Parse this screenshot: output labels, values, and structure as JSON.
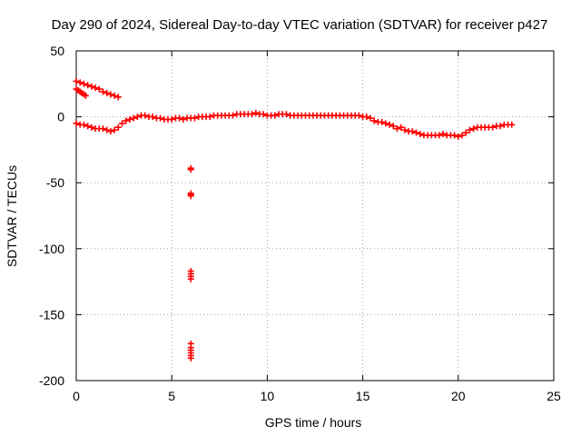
{
  "chart_data": {
    "type": "scatter",
    "title": "Day 290 of 2024, Sidereal Day-to-day VTEC variation (SDTVAR) for receiver p427",
    "xlabel": "GPS time / hours",
    "ylabel": "SDTVAR / TECUs",
    "xlim": [
      0,
      25
    ],
    "ylim": [
      -200,
      50
    ],
    "xticks": [
      0,
      5,
      10,
      15,
      20,
      25
    ],
    "yticks": [
      50,
      0,
      -50,
      -100,
      -150,
      -200
    ],
    "grid": true,
    "marker": "+",
    "color": "#ff0000",
    "series": [
      {
        "name": "SDTVAR",
        "segments": [
          {
            "x": [
              0.0,
              0.2,
              0.4,
              0.6,
              0.8,
              1.0,
              1.2,
              1.4,
              1.6,
              1.8,
              2.0,
              2.2
            ],
            "y": [
              27,
              26,
              25,
              24,
              23,
              22,
              21,
              19,
              18,
              17,
              16,
              15
            ]
          },
          {
            "x": [
              0.0,
              0.1,
              0.2,
              0.3,
              0.4,
              0.5
            ],
            "y": [
              21,
              20,
              19,
              18,
              17,
              16
            ]
          },
          {
            "x": [
              0.0,
              0.2,
              0.4,
              0.6,
              0.8,
              1.0,
              1.2,
              1.4,
              1.6,
              1.8,
              2.0,
              2.2,
              2.4,
              2.6,
              2.8,
              3.0,
              3.2,
              3.4,
              3.6,
              3.8,
              4.0,
              4.2,
              4.4,
              4.6,
              4.8,
              5.0,
              5.2,
              5.4,
              5.6,
              5.8,
              6.0,
              6.2,
              6.4,
              6.6,
              6.8,
              7.0,
              7.2,
              7.4,
              7.6,
              7.8,
              8.0,
              8.2,
              8.4,
              8.6,
              8.8,
              9.0,
              9.2,
              9.4,
              9.6,
              9.8,
              10.0,
              10.2,
              10.4,
              10.6,
              10.8,
              11.0,
              11.2,
              11.4,
              11.6,
              11.8,
              12.0,
              12.2,
              12.4,
              12.6,
              12.8,
              13.0,
              13.2,
              13.4,
              13.6,
              13.8,
              14.0,
              14.2,
              14.4,
              14.6,
              14.8,
              15.0,
              15.2,
              15.4,
              15.6,
              15.8,
              16.0,
              16.2,
              16.4,
              16.6,
              16.8,
              17.0,
              17.2,
              17.4,
              17.6,
              17.8,
              18.0,
              18.2,
              18.4,
              18.6,
              18.8,
              19.0,
              19.2,
              19.4,
              19.6,
              19.8,
              20.0,
              20.2,
              20.4,
              20.6,
              20.8,
              21.0,
              21.2,
              21.4,
              21.6,
              21.8,
              22.0,
              22.2,
              22.4,
              22.6,
              22.8
            ],
            "y": [
              -5,
              -6,
              -6,
              -7,
              -8,
              -9,
              -9,
              -9,
              -10,
              -11,
              -10,
              -8,
              -5,
              -3,
              -2,
              -1,
              0,
              1,
              1,
              0,
              0,
              -1,
              -1,
              -2,
              -2,
              -2,
              -1,
              -1,
              -2,
              -1,
              -1,
              -1,
              0,
              0,
              0,
              0,
              1,
              1,
              1,
              1,
              1,
              1,
              2,
              2,
              2,
              2,
              2,
              3,
              2,
              2,
              1,
              1,
              1,
              2,
              2,
              2,
              1,
              1,
              1,
              1,
              1,
              1,
              1,
              1,
              1,
              1,
              1,
              1,
              1,
              1,
              1,
              1,
              1,
              1,
              1,
              0,
              0,
              -1,
              -3,
              -4,
              -4,
              -5,
              -6,
              -7,
              -9,
              -8,
              -10,
              -11,
              -11,
              -12,
              -13,
              -14,
              -14,
              -14,
              -14,
              -14,
              -13,
              -14,
              -14,
              -14,
              -15,
              -14,
              -12,
              -10,
              -9,
              -8,
              -8,
              -8,
              -8,
              -8,
              -7,
              -7,
              -6,
              -6,
              -6
            ]
          },
          {
            "x": [
              6.0,
              6.0,
              6.0,
              6.0,
              6.0,
              6.0,
              6.0,
              6.0,
              6.0,
              6.0,
              6.0,
              6.0,
              6.0,
              6.0,
              6.0
            ],
            "y": [
              -39,
              -40,
              -58,
              -59,
              -60,
              -117,
              -119,
              -121,
              -123,
              -172,
              -175,
              -177,
              -179,
              -181,
              -183
            ]
          }
        ]
      }
    ]
  }
}
